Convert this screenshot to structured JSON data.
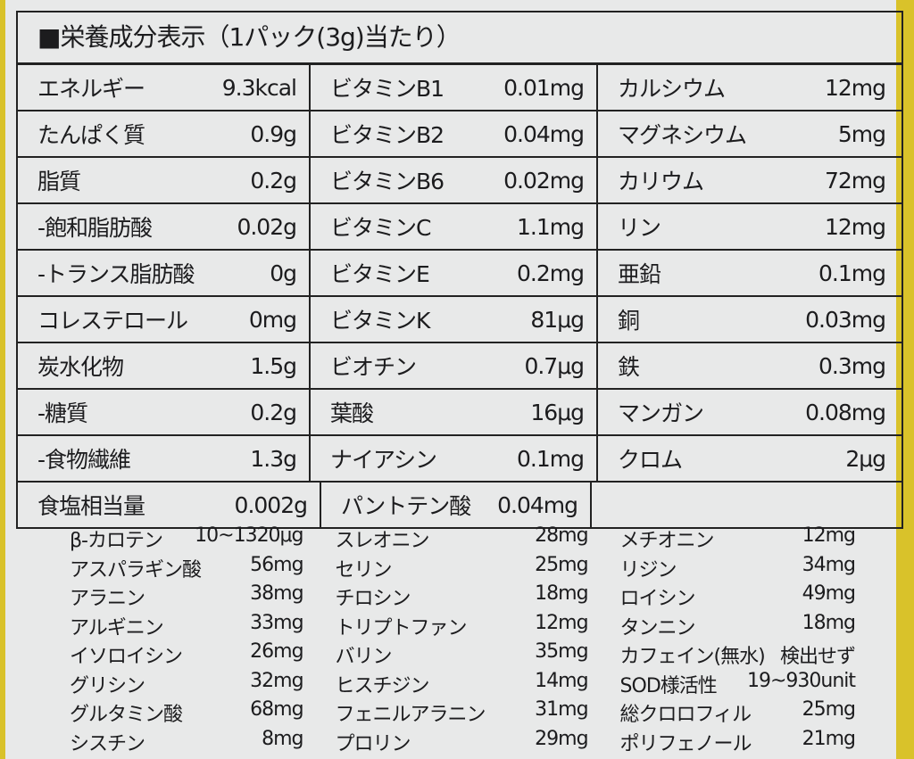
{
  "title": "■栄養成分表示（1パック(3g)当たり）",
  "table_rows": [
    [
      [
        "エネルギー",
        "9.3kcal"
      ],
      [
        "ビタミンB1",
        "0.01mg"
      ],
      [
        "カルシウム",
        "12mg"
      ]
    ],
    [
      [
        "たんぱく質",
        "0.9g"
      ],
      [
        "ビタミンB2",
        "0.04mg"
      ],
      [
        "マグネシウム",
        "5mg"
      ]
    ],
    [
      [
        "脂質",
        "0.2g"
      ],
      [
        "ビタミンB6",
        "0.02mg"
      ],
      [
        "カリウム",
        "72mg"
      ]
    ],
    [
      [
        "-飽和脂肪酸",
        "0.02g"
      ],
      [
        "ビタミンC",
        "1.1mg"
      ],
      [
        "リン",
        "12mg"
      ]
    ],
    [
      [
        "-トランス脂肪酸",
        "0g"
      ],
      [
        "ビタミンE",
        "0.2mg"
      ],
      [
        "亜鉛",
        "0.1mg"
      ]
    ],
    [
      [
        "コレステロール",
        "0mg"
      ],
      [
        "ビタミンK",
        "81μg"
      ],
      [
        "銅",
        "0.03mg"
      ]
    ],
    [
      [
        "炭水化物",
        "1.5g"
      ],
      [
        "ビオチン",
        "0.7μg"
      ],
      [
        "鉄",
        "0.3mg"
      ]
    ],
    [
      [
        "-糖質",
        "0.2g"
      ],
      [
        "葉酸",
        "16μg"
      ],
      [
        "マンガン",
        "0.08mg"
      ]
    ],
    [
      [
        "-食物繊維",
        "1.3g"
      ],
      [
        "ナイアシン",
        "0.1mg"
      ],
      [
        "クロム",
        "2μg"
      ]
    ],
    [
      [
        "食塩相当量",
        "0.002g"
      ],
      [
        "パントテン酸",
        "0.04mg"
      ],
      [
        "",
        ""
      ]
    ]
  ],
  "list_rows": [
    [
      [
        "β-カロテン",
        "10~1320μg"
      ],
      [
        "スレオニン",
        "28mg"
      ],
      [
        "メチオニン",
        "12mg"
      ]
    ],
    [
      [
        "アスパラギン酸",
        "56mg"
      ],
      [
        "セリン",
        "25mg"
      ],
      [
        "リジン",
        "34mg"
      ]
    ],
    [
      [
        "アラニン",
        "38mg"
      ],
      [
        "チロシン",
        "18mg"
      ],
      [
        "ロイシン",
        "49mg"
      ]
    ],
    [
      [
        "アルギニン",
        "33mg"
      ],
      [
        "トリプトファン",
        "12mg"
      ],
      [
        "タンニン",
        "18mg"
      ]
    ],
    [
      [
        "イソロイシン",
        "26mg"
      ],
      [
        "バリン",
        "35mg"
      ],
      [
        "カフェイン(無水)",
        "検出せず"
      ]
    ],
    [
      [
        "グリシン",
        "32mg"
      ],
      [
        "ヒスチジン",
        "14mg"
      ],
      [
        "SOD様活性",
        "19~930unit"
      ]
    ],
    [
      [
        "グルタミン酸",
        "68mg"
      ],
      [
        "フェニルアラニン",
        "31mg"
      ],
      [
        "総クロロフィル",
        "25mg"
      ]
    ],
    [
      [
        "シスチン",
        "8mg"
      ],
      [
        "プロリン",
        "29mg"
      ],
      [
        "ポリフェノール",
        "21mg"
      ]
    ]
  ]
}
